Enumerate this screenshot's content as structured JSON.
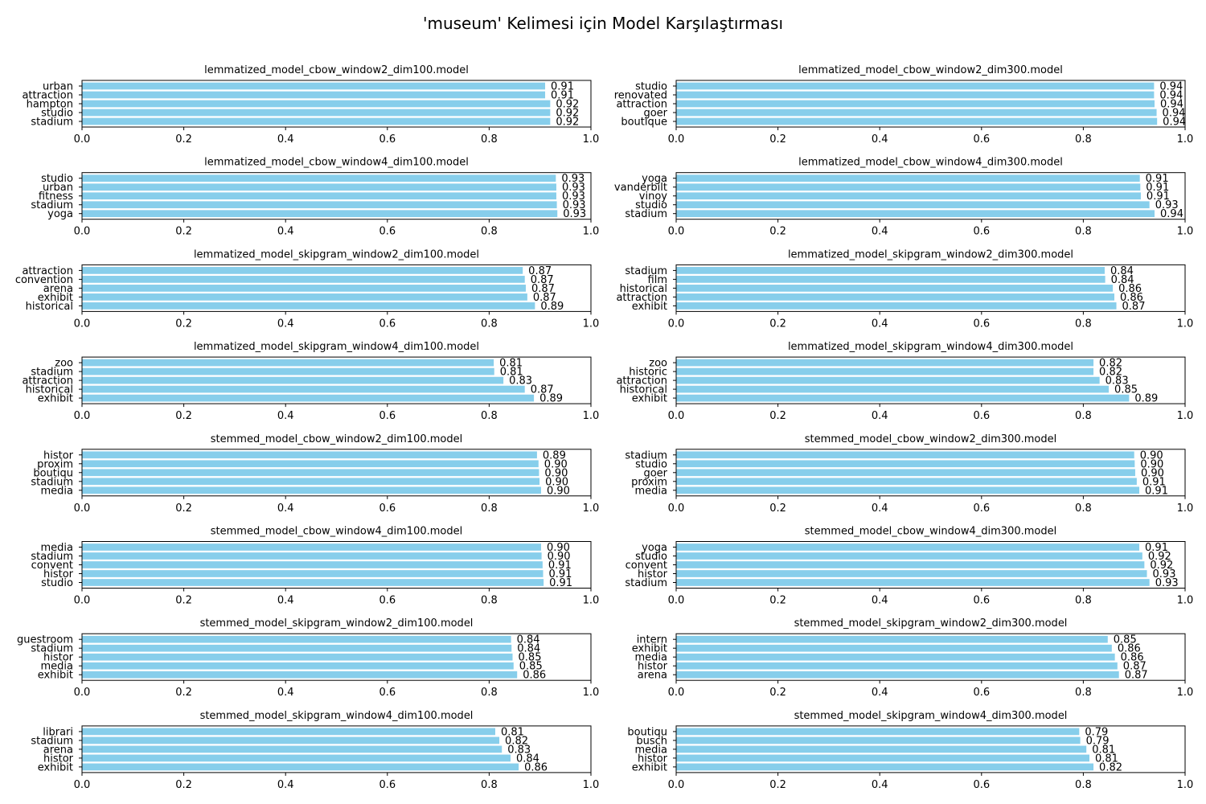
{
  "title": "'museum' Kelimesi için Model Karşılaştırması",
  "bar_color": "#87CEEB",
  "chart_data": [
    {
      "type": "bar",
      "orientation": "horizontal",
      "title": "lemmatized_model_cbow_window2_dim100.model",
      "categories": [
        "stadium",
        "studio",
        "hampton",
        "attraction",
        "urban"
      ],
      "values": [
        0.92,
        0.92,
        0.92,
        0.91,
        0.91
      ],
      "labels": [
        "0.92",
        "0.92",
        "0.92",
        "0.91",
        "0.91"
      ],
      "xlim": [
        0,
        1.0
      ],
      "xticks": [
        "0.0",
        "0.2",
        "0.4",
        "0.6",
        "0.8",
        "1.0"
      ]
    },
    {
      "type": "bar",
      "orientation": "horizontal",
      "title": "lemmatized_model_cbow_window2_dim300.model",
      "categories": [
        "boutique",
        "goer",
        "attraction",
        "renovated",
        "studio"
      ],
      "values": [
        0.945,
        0.944,
        0.94,
        0.939,
        0.939
      ],
      "labels": [
        "0.94",
        "0.94",
        "0.94",
        "0.94",
        "0.94"
      ],
      "xlim": [
        0,
        1.0
      ],
      "xticks": [
        "0.0",
        "0.2",
        "0.4",
        "0.6",
        "0.8",
        "1.0"
      ]
    },
    {
      "type": "bar",
      "orientation": "horizontal",
      "title": "lemmatized_model_cbow_window4_dim100.model",
      "categories": [
        "yoga",
        "stadium",
        "fitness",
        "urban",
        "studio"
      ],
      "values": [
        0.934,
        0.933,
        0.932,
        0.932,
        0.931
      ],
      "labels": [
        "0.93",
        "0.93",
        "0.93",
        "0.93",
        "0.93"
      ],
      "xlim": [
        0,
        1.0
      ],
      "xticks": [
        "0.0",
        "0.2",
        "0.4",
        "0.6",
        "0.8",
        "1.0"
      ]
    },
    {
      "type": "bar",
      "orientation": "horizontal",
      "title": "lemmatized_model_cbow_window4_dim300.model",
      "categories": [
        "stadium",
        "studio",
        "vinoy",
        "vanderbilt",
        "yoga"
      ],
      "values": [
        0.94,
        0.93,
        0.913,
        0.912,
        0.911
      ],
      "labels": [
        "0.94",
        "0.93",
        "0.91",
        "0.91",
        "0.91"
      ],
      "xlim": [
        0,
        1.0
      ],
      "xticks": [
        "0.0",
        "0.2",
        "0.4",
        "0.6",
        "0.8",
        "1.0"
      ]
    },
    {
      "type": "bar",
      "orientation": "horizontal",
      "title": "lemmatized_model_skipgram_window2_dim100.model",
      "categories": [
        "historical",
        "exhibit",
        "arena",
        "convention",
        "attraction"
      ],
      "values": [
        0.89,
        0.875,
        0.872,
        0.87,
        0.866
      ],
      "labels": [
        "0.89",
        "0.87",
        "0.87",
        "0.87",
        "0.87"
      ],
      "xlim": [
        0,
        1.0
      ],
      "xticks": [
        "0.0",
        "0.2",
        "0.4",
        "0.6",
        "0.8",
        "1.0"
      ]
    },
    {
      "type": "bar",
      "orientation": "horizontal",
      "title": "lemmatized_model_skipgram_window2_dim300.model",
      "categories": [
        "exhibit",
        "attraction",
        "historical",
        "film",
        "stadium"
      ],
      "values": [
        0.865,
        0.861,
        0.858,
        0.843,
        0.842
      ],
      "labels": [
        "0.87",
        "0.86",
        "0.86",
        "0.84",
        "0.84"
      ],
      "xlim": [
        0,
        1.0
      ],
      "xticks": [
        "0.0",
        "0.2",
        "0.4",
        "0.6",
        "0.8",
        "1.0"
      ]
    },
    {
      "type": "bar",
      "orientation": "horizontal",
      "title": "lemmatized_model_skipgram_window4_dim100.model",
      "categories": [
        "exhibit",
        "historical",
        "attraction",
        "stadium",
        "zoo"
      ],
      "values": [
        0.888,
        0.87,
        0.828,
        0.81,
        0.809
      ],
      "labels": [
        "0.89",
        "0.87",
        "0.83",
        "0.81",
        "0.81"
      ],
      "xlim": [
        0,
        1.0
      ],
      "xticks": [
        "0.0",
        "0.2",
        "0.4",
        "0.6",
        "0.8",
        "1.0"
      ]
    },
    {
      "type": "bar",
      "orientation": "horizontal",
      "title": "lemmatized_model_skipgram_window4_dim300.model",
      "categories": [
        "exhibit",
        "historical",
        "attraction",
        "historic",
        "zoo"
      ],
      "values": [
        0.89,
        0.85,
        0.832,
        0.82,
        0.82
      ],
      "labels": [
        "0.89",
        "0.85",
        "0.83",
        "0.82",
        "0.82"
      ],
      "xlim": [
        0,
        1.0
      ],
      "xticks": [
        "0.0",
        "0.2",
        "0.4",
        "0.6",
        "0.8",
        "1.0"
      ]
    },
    {
      "type": "bar",
      "orientation": "horizontal",
      "title": "stemmed_model_cbow_window2_dim100.model",
      "categories": [
        "media",
        "stadium",
        "boutiqu",
        "proxim",
        "histor"
      ],
      "values": [
        0.902,
        0.899,
        0.898,
        0.897,
        0.894
      ],
      "labels": [
        "0.90",
        "0.90",
        "0.90",
        "0.90",
        "0.89"
      ],
      "xlim": [
        0,
        1.0
      ],
      "xticks": [
        "0.0",
        "0.2",
        "0.4",
        "0.6",
        "0.8",
        "1.0"
      ]
    },
    {
      "type": "bar",
      "orientation": "horizontal",
      "title": "stemmed_model_cbow_window2_dim300.model",
      "categories": [
        "media",
        "proxim",
        "goer",
        "studio",
        "stadium"
      ],
      "values": [
        0.91,
        0.905,
        0.902,
        0.901,
        0.9
      ],
      "labels": [
        "0.91",
        "0.91",
        "0.90",
        "0.90",
        "0.90"
      ],
      "xlim": [
        0,
        1.0
      ],
      "xticks": [
        "0.0",
        "0.2",
        "0.4",
        "0.6",
        "0.8",
        "1.0"
      ]
    },
    {
      "type": "bar",
      "orientation": "horizontal",
      "title": "stemmed_model_cbow_window4_dim100.model",
      "categories": [
        "studio",
        "histor",
        "convent",
        "stadium",
        "media"
      ],
      "values": [
        0.907,
        0.906,
        0.905,
        0.903,
        0.902
      ],
      "labels": [
        "0.91",
        "0.91",
        "0.91",
        "0.90",
        "0.90"
      ],
      "xlim": [
        0,
        1.0
      ],
      "xticks": [
        "0.0",
        "0.2",
        "0.4",
        "0.6",
        "0.8",
        "1.0"
      ]
    },
    {
      "type": "bar",
      "orientation": "horizontal",
      "title": "stemmed_model_cbow_window4_dim300.model",
      "categories": [
        "stadium",
        "histor",
        "convent",
        "studio",
        "yoga"
      ],
      "values": [
        0.93,
        0.925,
        0.92,
        0.916,
        0.91
      ],
      "labels": [
        "0.93",
        "0.93",
        "0.92",
        "0.92",
        "0.91"
      ],
      "xlim": [
        0,
        1.0
      ],
      "xticks": [
        "0.0",
        "0.2",
        "0.4",
        "0.6",
        "0.8",
        "1.0"
      ]
    },
    {
      "type": "bar",
      "orientation": "horizontal",
      "title": "stemmed_model_skipgram_window2_dim100.model",
      "categories": [
        "exhibit",
        "media",
        "histor",
        "stadium",
        "guestroom"
      ],
      "values": [
        0.855,
        0.848,
        0.846,
        0.844,
        0.843
      ],
      "labels": [
        "0.86",
        "0.85",
        "0.85",
        "0.84",
        "0.84"
      ],
      "xlim": [
        0,
        1.0
      ],
      "xticks": [
        "0.0",
        "0.2",
        "0.4",
        "0.6",
        "0.8",
        "1.0"
      ]
    },
    {
      "type": "bar",
      "orientation": "horizontal",
      "title": "stemmed_model_skipgram_window2_dim300.model",
      "categories": [
        "arena",
        "histor",
        "media",
        "exhibit",
        "intern"
      ],
      "values": [
        0.87,
        0.867,
        0.862,
        0.856,
        0.848
      ],
      "labels": [
        "0.87",
        "0.87",
        "0.86",
        "0.86",
        "0.85"
      ],
      "xlim": [
        0,
        1.0
      ],
      "xticks": [
        "0.0",
        "0.2",
        "0.4",
        "0.6",
        "0.8",
        "1.0"
      ]
    },
    {
      "type": "bar",
      "orientation": "horizontal",
      "title": "stemmed_model_skipgram_window4_dim100.model",
      "categories": [
        "exhibit",
        "histor",
        "arena",
        "stadium",
        "librari"
      ],
      "values": [
        0.858,
        0.842,
        0.825,
        0.82,
        0.812
      ],
      "labels": [
        "0.86",
        "0.84",
        "0.83",
        "0.82",
        "0.81"
      ],
      "xlim": [
        0,
        1.0
      ],
      "xticks": [
        "0.0",
        "0.2",
        "0.4",
        "0.6",
        "0.8",
        "1.0"
      ]
    },
    {
      "type": "bar",
      "orientation": "horizontal",
      "title": "stemmed_model_skipgram_window4_dim300.model",
      "categories": [
        "exhibit",
        "histor",
        "media",
        "busch",
        "boutiqu"
      ],
      "values": [
        0.82,
        0.812,
        0.806,
        0.794,
        0.792
      ],
      "labels": [
        "0.82",
        "0.81",
        "0.81",
        "0.79",
        "0.79"
      ],
      "xlim": [
        0,
        1.0
      ],
      "xticks": [
        "0.0",
        "0.2",
        "0.4",
        "0.6",
        "0.8",
        "1.0"
      ]
    }
  ]
}
